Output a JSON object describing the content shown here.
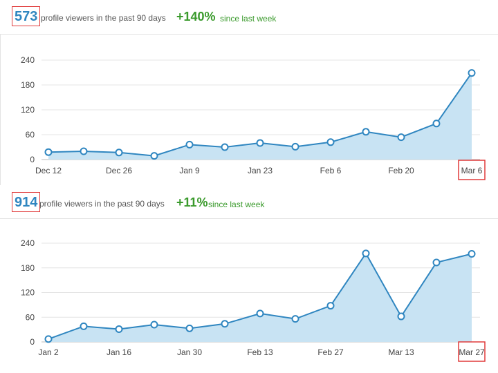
{
  "charts": [
    {
      "count": "573",
      "count_label": "profile viewers in the past 90 days",
      "change": "+140%",
      "change_label": "since last week",
      "highlight_x_tick": "Mar 6"
    },
    {
      "count": "914",
      "count_label": "profile viewers in the past 90 days",
      "change": "+11%",
      "change_label": "since last week",
      "highlight_x_tick": "Mar 27"
    }
  ],
  "colors": {
    "line": "#2f86c0",
    "area": "#c8e3f3",
    "highlight": "#e03a3a",
    "positive": "#3a9a2c"
  },
  "chart_data": [
    {
      "type": "area",
      "title": "",
      "xlabel": "",
      "ylabel": "",
      "x": [
        "Dec 12",
        "Dec 19",
        "Dec 26",
        "Jan 2",
        "Jan 9",
        "Jan 16",
        "Jan 23",
        "Jan 30",
        "Feb 6",
        "Feb 13",
        "Feb 20",
        "Feb 27",
        "Mar 6"
      ],
      "x_ticks": [
        "Dec 12",
        "Dec 26",
        "Jan 9",
        "Jan 23",
        "Feb 6",
        "Feb 20",
        "Mar 6"
      ],
      "values": [
        18,
        20,
        17,
        9,
        36,
        30,
        40,
        31,
        42,
        67,
        54,
        87,
        209
      ],
      "ylim": [
        0,
        240
      ],
      "y_ticks": [
        0,
        60,
        120,
        180,
        240
      ],
      "grid": true,
      "markers": true
    },
    {
      "type": "area",
      "title": "",
      "xlabel": "",
      "ylabel": "",
      "x": [
        "Jan 2",
        "Jan 9",
        "Jan 16",
        "Jan 23",
        "Jan 30",
        "Feb 6",
        "Feb 13",
        "Feb 20",
        "Feb 27",
        "Mar 6",
        "Mar 13",
        "Mar 20",
        "Mar 27"
      ],
      "x_ticks": [
        "Jan 2",
        "Jan 16",
        "Jan 30",
        "Feb 13",
        "Feb 27",
        "Mar 13",
        "Mar 27"
      ],
      "values": [
        7,
        38,
        31,
        42,
        33,
        44,
        69,
        56,
        88,
        215,
        62,
        193,
        214
      ],
      "ylim": [
        0,
        240
      ],
      "y_ticks": [
        0,
        60,
        120,
        180,
        240
      ],
      "grid": true,
      "markers": true
    }
  ]
}
